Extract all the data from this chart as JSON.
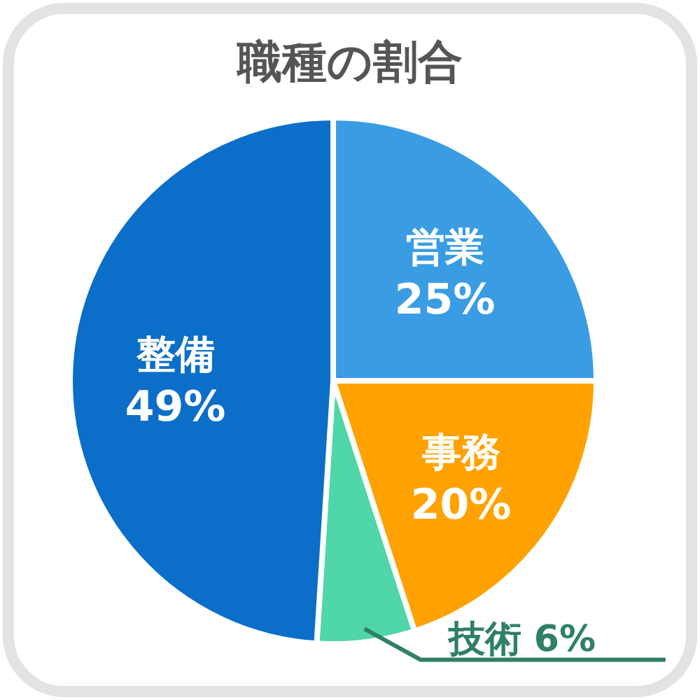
{
  "chart_data": {
    "type": "pie",
    "title": "職種の割合",
    "categories": [
      "営業",
      "事務",
      "技術",
      "整備"
    ],
    "values": [
      25,
      20,
      6,
      49
    ],
    "value_labels": [
      "25%",
      "20%",
      "6%",
      "49%"
    ],
    "colors": [
      "#3a9de3",
      "#ffa200",
      "#4fd6a9",
      "#0b6ec9"
    ]
  }
}
